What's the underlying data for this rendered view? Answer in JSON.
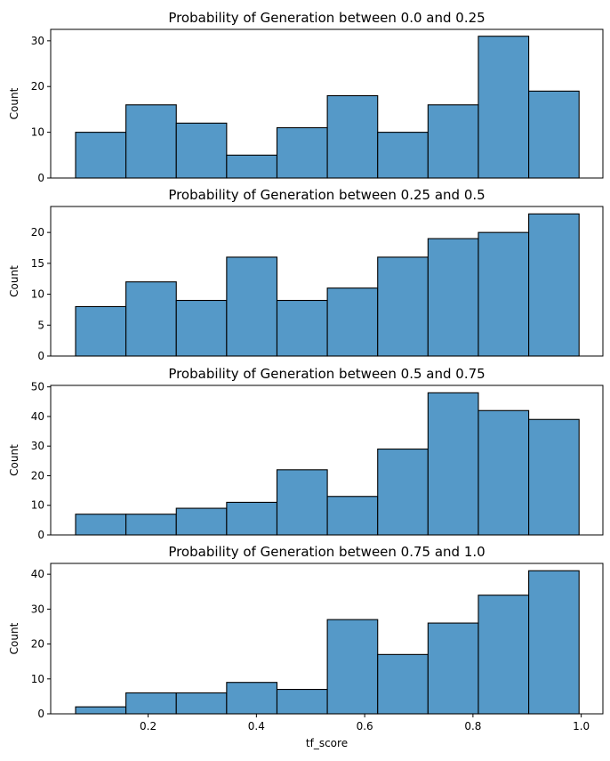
{
  "chart_data": [
    {
      "type": "bar",
      "title": "Probability of Generation between 0.0 and 0.25",
      "ylabel": "Count",
      "xlabel": "",
      "bin_edges": [
        0.066,
        0.159,
        0.252,
        0.345,
        0.438,
        0.531,
        0.624,
        0.717,
        0.81,
        0.903,
        0.996
      ],
      "values": [
        10,
        16,
        12,
        5,
        11,
        18,
        10,
        16,
        31,
        19
      ],
      "ylim": [
        0,
        32.5
      ],
      "yticks": [
        0,
        10,
        20,
        30
      ],
      "xlim": [
        0.02,
        1.04
      ],
      "xticks": []
    },
    {
      "type": "bar",
      "title": "Probability of Generation between 0.25 and 0.5",
      "ylabel": "Count",
      "xlabel": "",
      "bin_edges": [
        0.066,
        0.159,
        0.252,
        0.345,
        0.438,
        0.531,
        0.624,
        0.717,
        0.81,
        0.903,
        0.996
      ],
      "values": [
        8,
        12,
        9,
        16,
        9,
        11,
        16,
        19,
        20,
        23
      ],
      "ylim": [
        0,
        24.2
      ],
      "yticks": [
        0,
        5,
        10,
        15,
        20
      ],
      "xlim": [
        0.02,
        1.04
      ],
      "xticks": []
    },
    {
      "type": "bar",
      "title": "Probability of Generation between 0.5 and 0.75",
      "ylabel": "Count",
      "xlabel": "",
      "bin_edges": [
        0.066,
        0.159,
        0.252,
        0.345,
        0.438,
        0.531,
        0.624,
        0.717,
        0.81,
        0.903,
        0.996
      ],
      "values": [
        7,
        7,
        9,
        11,
        22,
        13,
        29,
        48,
        42,
        39
      ],
      "ylim": [
        0,
        50.5
      ],
      "yticks": [
        0,
        10,
        20,
        30,
        40,
        50
      ],
      "xlim": [
        0.02,
        1.04
      ],
      "xticks": []
    },
    {
      "type": "bar",
      "title": "Probability of Generation between 0.75 and 1.0",
      "ylabel": "Count",
      "xlabel": "tf_score",
      "bin_edges": [
        0.066,
        0.159,
        0.252,
        0.345,
        0.438,
        0.531,
        0.624,
        0.717,
        0.81,
        0.903,
        0.996
      ],
      "values": [
        2,
        6,
        6,
        9,
        7,
        27,
        17,
        26,
        34,
        41
      ],
      "ylim": [
        0,
        43.1
      ],
      "yticks": [
        0,
        10,
        20,
        30,
        40
      ],
      "xlim": [
        0.02,
        1.04
      ],
      "xticks": [
        0.2,
        0.4,
        0.6,
        0.8,
        1.0
      ],
      "xtick_labels": [
        "0.2",
        "0.4",
        "0.6",
        "0.8",
        "1.0"
      ]
    }
  ],
  "colors": {
    "bar_fill": "#5599c8",
    "bar_edge": "#000000"
  }
}
